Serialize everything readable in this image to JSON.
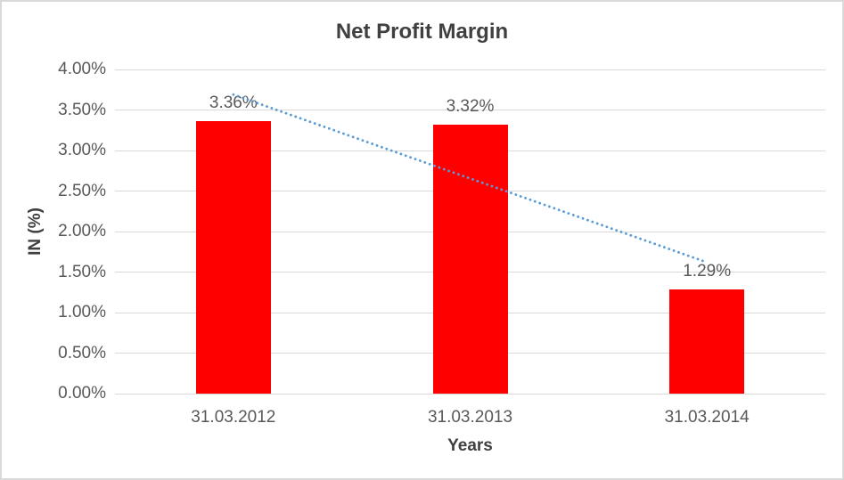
{
  "chart_data": {
    "type": "bar",
    "title": "Net Profit Margin",
    "xlabel": "Years",
    "ylabel": "IN (%)",
    "categories": [
      "31.03.2012",
      "31.03.2013",
      "31.03.2014"
    ],
    "values": [
      3.36,
      3.32,
      1.29
    ],
    "bar_labels": [
      "3.36%",
      "3.32%",
      "1.29%"
    ],
    "yticks": [
      {
        "value": 0.0,
        "label": "0.00%"
      },
      {
        "value": 0.5,
        "label": "0.50%"
      },
      {
        "value": 1.0,
        "label": "1.00%"
      },
      {
        "value": 1.5,
        "label": "1.50%"
      },
      {
        "value": 2.0,
        "label": "2.00%"
      },
      {
        "value": 2.5,
        "label": "2.50%"
      },
      {
        "value": 3.0,
        "label": "3.00%"
      },
      {
        "value": 3.5,
        "label": "3.50%"
      },
      {
        "value": 4.0,
        "label": "4.00%"
      }
    ],
    "ylim": [
      0,
      4
    ],
    "grid": true,
    "legend": false,
    "trendline": {
      "type": "linear",
      "style": "dotted",
      "start_value": 3.69,
      "end_value": 1.62
    },
    "colors": {
      "bar": "#FF0000",
      "trendline": "#5B9BD5",
      "gridline": "#D9D9D9",
      "frame_border": "#D9D9D9",
      "tick_text": "#595959",
      "title_text": "#404040",
      "background": "#FFFFFF"
    }
  }
}
